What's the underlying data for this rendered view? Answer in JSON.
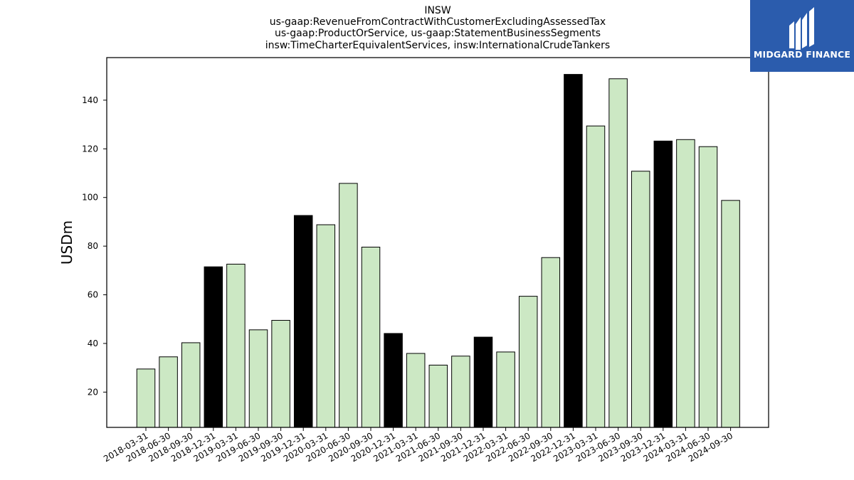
{
  "title_lines": [
    "INSW",
    "us-gaap:RevenueFromContractWithCustomerExcludingAssessedTax",
    "us-gaap:ProductOrService, us-gaap:StatementBusinessSegments",
    "insw:TimeCharterEquivalentServices, insw:InternationalCrudeTankers"
  ],
  "logo": {
    "text": "MIDGARD FINANCE",
    "background": "#2b5cad"
  },
  "colors": {
    "quarter_bar": "#cce8c4",
    "year_end_bar": "#000000",
    "edge": "#000000"
  },
  "chart_data": {
    "type": "bar",
    "ylabel": "USDm",
    "xlabel": "",
    "ylim": [
      5.5,
      157.5
    ],
    "yticks": [
      20,
      40,
      60,
      80,
      100,
      120,
      140
    ],
    "categories": [
      "2018-03-31",
      "2018-06-30",
      "2018-09-30",
      "2018-12-31",
      "2019-03-31",
      "2019-06-30",
      "2019-09-30",
      "2019-12-31",
      "2020-03-31",
      "2020-06-30",
      "2020-09-30",
      "2020-12-31",
      "2021-03-31",
      "2021-06-30",
      "2021-09-30",
      "2021-12-31",
      "2022-03-31",
      "2022-06-30",
      "2022-09-30",
      "2022-12-31",
      "2023-03-31",
      "2023-06-30",
      "2023-09-30",
      "2023-12-31",
      "2024-03-31",
      "2024-06-30",
      "2024-09-30"
    ],
    "values": [
      29.5,
      34.5,
      40.3,
      71.5,
      72.6,
      45.6,
      49.5,
      92.6,
      88.8,
      105.8,
      79.6,
      44.1,
      35.9,
      31.1,
      34.8,
      42.6,
      36.5,
      59.4,
      75.3,
      150.6,
      129.4,
      148.8,
      110.8,
      123.2,
      123.8,
      120.9,
      98.8
    ],
    "highlighted": [
      3,
      7,
      11,
      15,
      19,
      23
    ]
  }
}
